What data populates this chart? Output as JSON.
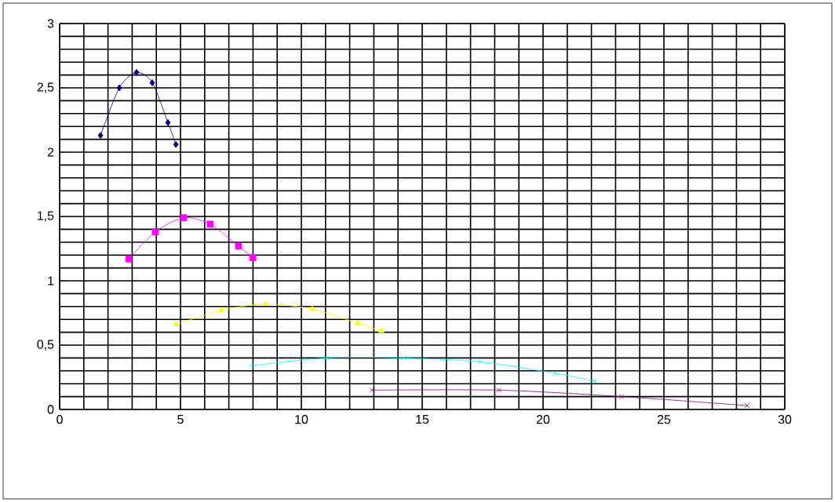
{
  "chart_data": {
    "type": "line",
    "xlim": [
      0,
      30
    ],
    "ylim": [
      0,
      3
    ],
    "xticks": [
      0,
      5,
      10,
      15,
      20,
      25,
      30
    ],
    "yticks": [
      0,
      {
        "value": 0.5,
        "label": "0,5"
      },
      1,
      {
        "value": 1.5,
        "label": "1,5"
      },
      2,
      {
        "value": 2.5,
        "label": "2,5"
      },
      3
    ],
    "grid": true,
    "series": [
      {
        "color": "#000080",
        "marker": "diamond",
        "x": [
          1.69,
          2.47,
          3.18,
          3.83,
          4.48,
          4.81
        ],
        "values": [
          2.13,
          2.5,
          2.62,
          2.54,
          2.23,
          2.06
        ]
      },
      {
        "color": "#ff00ff",
        "marker": "square",
        "x": [
          2.86,
          3.96,
          5.13,
          6.23,
          7.4,
          7.99
        ],
        "values": [
          1.17,
          1.38,
          1.49,
          1.44,
          1.27,
          1.18
        ]
      },
      {
        "color": "#ffff00",
        "marker": "triangle",
        "x": [
          4.81,
          6.69,
          8.51,
          10.45,
          12.34,
          13.31
        ],
        "values": [
          0.66,
          0.77,
          0.82,
          0.78,
          0.67,
          0.61
        ]
      },
      {
        "color": "#00ffff",
        "marker": "cross",
        "x": [
          7.92,
          11.04,
          14.22,
          17.4,
          20.52,
          22.14
        ],
        "values": [
          0.34,
          0.4,
          0.4,
          0.37,
          0.28,
          0.22
        ]
      },
      {
        "color": "#800080",
        "marker": "cross",
        "x": [
          12.92,
          18.18,
          23.25,
          28.44
        ],
        "values": [
          0.15,
          0.15,
          0.1,
          0.03
        ]
      }
    ]
  }
}
